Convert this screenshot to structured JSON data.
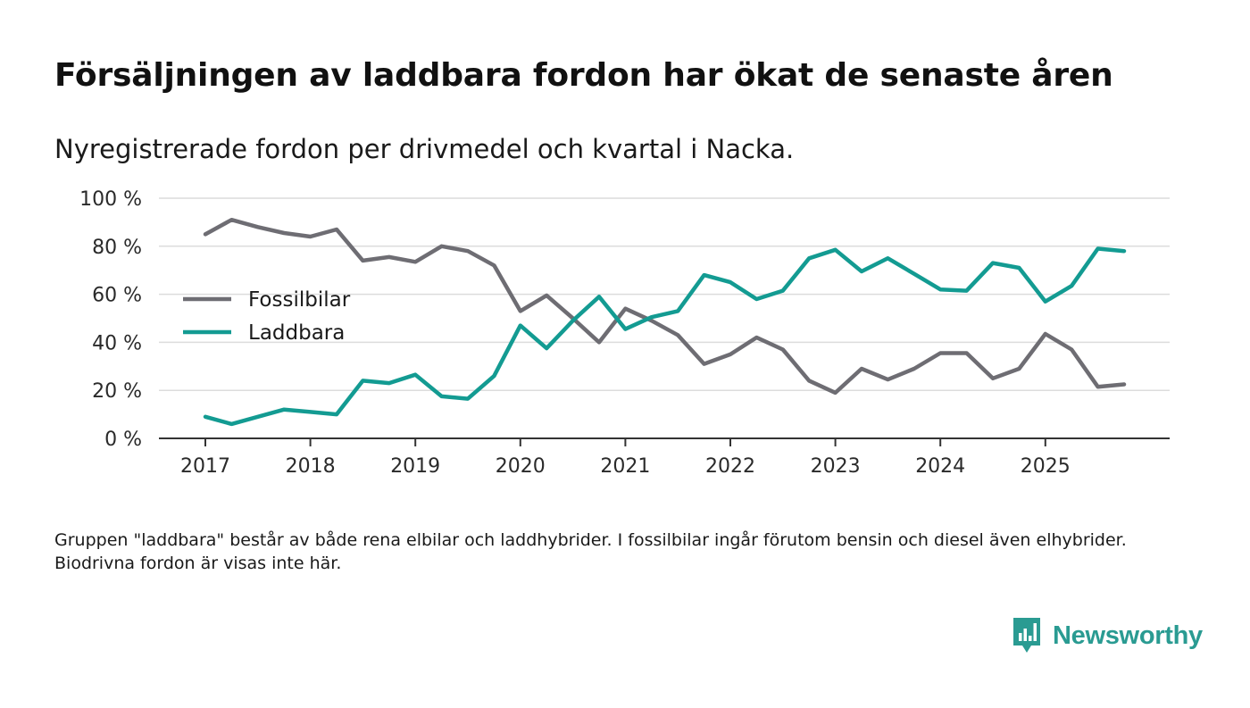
{
  "header": {
    "title": "Försäljningen av laddbara fordon har ökat de senaste åren",
    "subtitle": "Nyregistrerade fordon per drivmedel och kvartal i Nacka."
  },
  "footnote": "Gruppen \"laddbara\" består av både rena elbilar och laddhybrider. I fossilbilar ingår förutom bensin och diesel även elhybrider. Biodrivna fordon är visas inte här.",
  "brand": {
    "name": "Newsworthy",
    "color": "#2a9b92"
  },
  "chart_data": {
    "type": "line",
    "title": "Försäljningen av laddbara fordon har ökat de senaste åren",
    "subtitle": "Nyregistrerade fordon per drivmedel och kvartal i Nacka.",
    "xlabel": "",
    "ylabel": "",
    "ylim": [
      0,
      100
    ],
    "yticks": [
      0,
      20,
      40,
      60,
      80,
      100
    ],
    "ytick_labels": [
      "0 %",
      "20 %",
      "40 %",
      "60 %",
      "80 %",
      "100 %"
    ],
    "x_tick_labels": [
      "2017",
      "2018",
      "2019",
      "2020",
      "2021",
      "2022",
      "2023",
      "2024",
      "2025"
    ],
    "x": [
      "2017 Q1",
      "2017 Q2",
      "2017 Q3",
      "2017 Q4",
      "2018 Q1",
      "2018 Q2",
      "2018 Q3",
      "2018 Q4",
      "2019 Q1",
      "2019 Q2",
      "2019 Q3",
      "2019 Q4",
      "2020 Q1",
      "2020 Q2",
      "2020 Q3",
      "2020 Q4",
      "2021 Q1",
      "2021 Q2",
      "2021 Q3",
      "2021 Q4",
      "2022 Q1",
      "2022 Q2",
      "2022 Q3",
      "2022 Q4",
      "2023 Q1",
      "2023 Q2",
      "2023 Q3",
      "2023 Q4",
      "2024 Q1",
      "2024 Q2",
      "2024 Q3",
      "2024 Q4",
      "2025 Q1",
      "2025 Q2",
      "2025 Q3",
      "2025 Q4"
    ],
    "grid": true,
    "legend_position": "left",
    "series": [
      {
        "name": "Fossilbilar",
        "color": "#6e6d73",
        "values": [
          85,
          91,
          88,
          85.5,
          84,
          87,
          74,
          75.5,
          73.5,
          80,
          78,
          72,
          53,
          59.5,
          50,
          40,
          54,
          49,
          43,
          31,
          35,
          42,
          37,
          24,
          19,
          29,
          24.5,
          29,
          35.5,
          35.5,
          25,
          29,
          43.5,
          37,
          21.5,
          22.5
        ]
      },
      {
        "name": "Laddbara",
        "color": "#139b92",
        "values": [
          9,
          6,
          9,
          12,
          11,
          10,
          24,
          23,
          26.5,
          17.5,
          16.5,
          26,
          47,
          37.5,
          49,
          59,
          45.5,
          50.5,
          53,
          68,
          65,
          58,
          61.5,
          75,
          78.5,
          69.5,
          75,
          68.5,
          62,
          61.5,
          73,
          71,
          57,
          63.5,
          79,
          78
        ]
      }
    ]
  }
}
